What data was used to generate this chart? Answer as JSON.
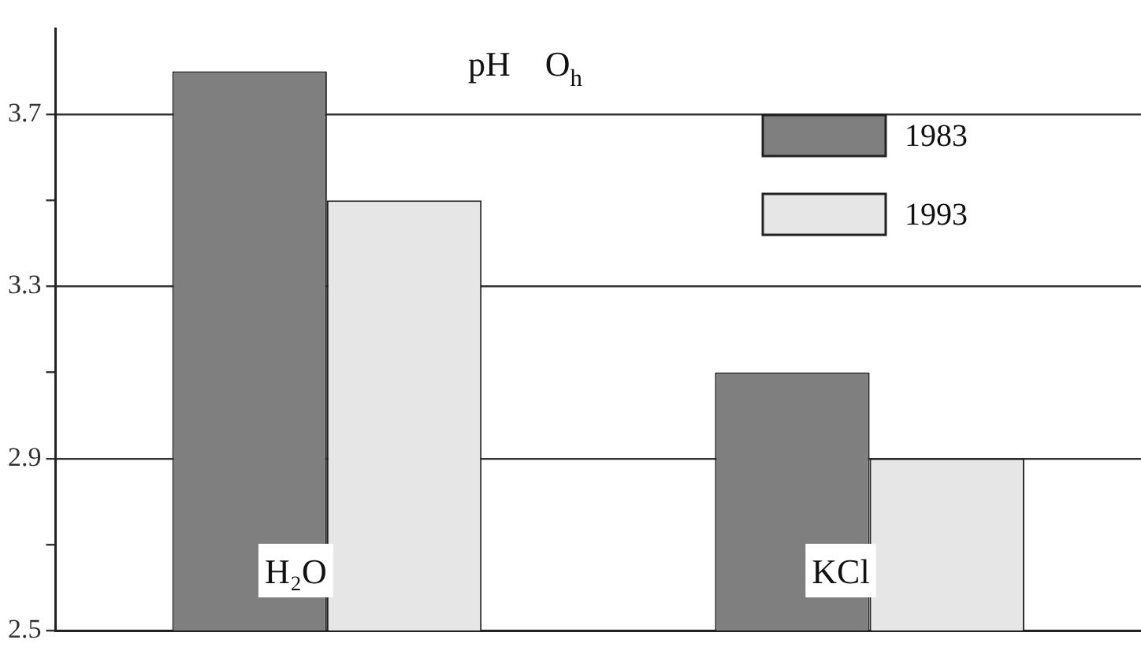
{
  "chart_data": {
    "type": "bar",
    "title": "pH    O$_{h}$",
    "categories": [
      "H₂O",
      "KCl"
    ],
    "series": [
      {
        "name": "1983",
        "color": "#7f7f7f",
        "values": [
          3.8,
          3.1
        ]
      },
      {
        "name": "1993",
        "color": "#e6e6e6",
        "values": [
          3.5,
          2.9
        ]
      }
    ],
    "ylim": [
      2.5,
      3.9
    ],
    "yticks": [
      2.5,
      {
        "value": 2.7,
        "label": null
      },
      2.9,
      {
        "value": 3.1,
        "label": null
      },
      3.3,
      {
        "value": 3.5,
        "label": null
      },
      3.7
    ],
    "grid": "y",
    "legend": "top right"
  }
}
